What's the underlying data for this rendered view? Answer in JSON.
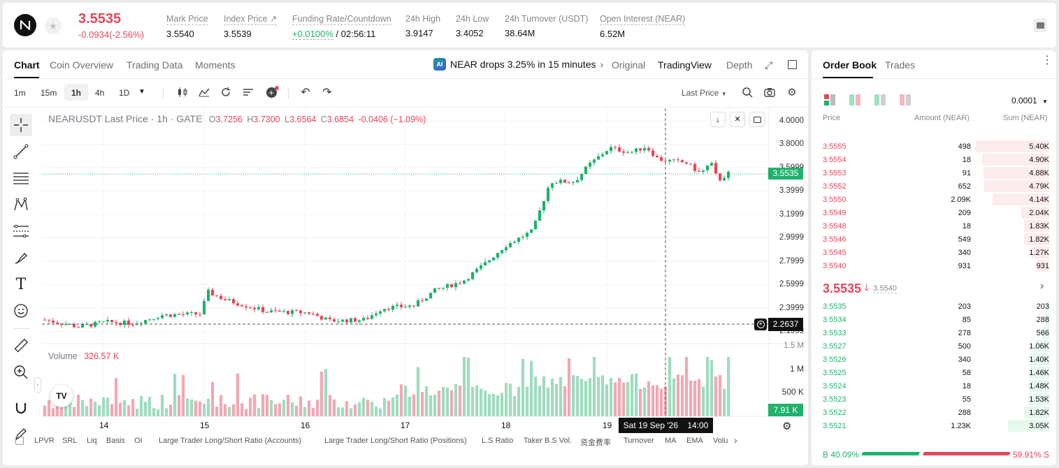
{
  "header": {
    "last_price": "3.5535",
    "change": "-0.0934(-2.56%)",
    "stats": [
      {
        "label": "Mark Price",
        "value": "3.5540"
      },
      {
        "label": "Index Price ↗",
        "value": "3.5539"
      },
      {
        "label": "Funding Rate/Countdown",
        "value_rate": "+0.0100%",
        "value_countdown": "/ 02:56:11"
      },
      {
        "label": "24h High",
        "value": "3.9147"
      },
      {
        "label": "24h Low",
        "value": "3.4052"
      },
      {
        "label": "24h Turnover (USDT)",
        "value": "38.64M"
      },
      {
        "label": "Open Interest (NEAR)",
        "value": "6.52M"
      }
    ],
    "colors": {
      "up": "#20b26c",
      "down": "#e5475b"
    }
  },
  "chart_tabs": [
    "Chart",
    "Coin Overview",
    "Trading Data",
    "Moments"
  ],
  "news": {
    "badge": "AI",
    "text": "NEAR drops 3.25% in 15 minutes"
  },
  "view_modes": [
    "Original",
    "TradingView",
    "Depth"
  ],
  "toolbar": {
    "intervals": [
      "1m",
      "15m",
      "1h",
      "4h",
      "1D"
    ],
    "price_type": "Last Price"
  },
  "legend": {
    "symbol": "NEARUSDT Last Price · 1h · GATE",
    "o": "3.7256",
    "h": "3.7300",
    "l": "3.6564",
    "c": "3.6854",
    "chg": "-0.0406 (−1.09%)"
  },
  "volume": {
    "label": "Volume",
    "value": "326.57 K",
    "current_tag": "7.91 K",
    "axis": [
      "1.5 M",
      "1 M",
      "500 K"
    ]
  },
  "price_axis": [
    "4.0000",
    "3.8000",
    "3.5999",
    "3.3999",
    "3.1999",
    "2.9999",
    "2.7999",
    "2.5999",
    "2.3999",
    "2.1999"
  ],
  "price_tags": {
    "current": "3.5535",
    "crosshair": "2.2637"
  },
  "time_axis": [
    "14",
    "15",
    "16",
    "17",
    "18",
    "19"
  ],
  "crosshair_time": "Sat 19 Sep '26    14:00",
  "indicators": [
    "LPVR",
    "SRL",
    "Liq",
    "Basis",
    "OI",
    "Large Trader Long/Short Ratio (Accounts)",
    "Large Trader Long/Short Ratio (Positions)",
    "L.S Ratio",
    "Taker B.S Vol.",
    "资金费率",
    "Turnover",
    "MA",
    "EMA",
    "Volu"
  ],
  "orderbook": {
    "tabs": [
      "Order Book",
      "Trades"
    ],
    "precision": "0.0001",
    "columns": [
      "Price",
      "Amount (NEAR)",
      "Sum (NEAR)"
    ],
    "asks": [
      {
        "price": "3.5555",
        "amount": "498",
        "sum": "5.40K",
        "depth": 1.0
      },
      {
        "price": "3.5554",
        "amount": "18",
        "sum": "4.90K",
        "depth": 0.91
      },
      {
        "price": "3.5553",
        "amount": "91",
        "sum": "4.88K",
        "depth": 0.9
      },
      {
        "price": "3.5552",
        "amount": "652",
        "sum": "4.79K",
        "depth": 0.89
      },
      {
        "price": "3.5550",
        "amount": "2.09K",
        "sum": "4.14K",
        "depth": 0.77
      },
      {
        "price": "3.5549",
        "amount": "209",
        "sum": "2.04K",
        "depth": 0.38
      },
      {
        "price": "3.5548",
        "amount": "18",
        "sum": "1.83K",
        "depth": 0.34
      },
      {
        "price": "3.5546",
        "amount": "549",
        "sum": "1.82K",
        "depth": 0.34
      },
      {
        "price": "3.5545",
        "amount": "340",
        "sum": "1.27K",
        "depth": 0.24
      },
      {
        "price": "3.5540",
        "amount": "931",
        "sum": "931",
        "depth": 0.17
      }
    ],
    "mid": {
      "price": "3.5535",
      "mark": "3.5540"
    },
    "bids": [
      {
        "price": "3.5535",
        "amount": "203",
        "sum": "203",
        "depth": 0.04
      },
      {
        "price": "3.5534",
        "amount": "85",
        "sum": "288",
        "depth": 0.05
      },
      {
        "price": "3.5533",
        "amount": "278",
        "sum": "566",
        "depth": 0.1
      },
      {
        "price": "3.5527",
        "amount": "500",
        "sum": "1.06K",
        "depth": 0.2
      },
      {
        "price": "3.5526",
        "amount": "340",
        "sum": "1.40K",
        "depth": 0.26
      },
      {
        "price": "3.5525",
        "amount": "58",
        "sum": "1.46K",
        "depth": 0.27
      },
      {
        "price": "3.5524",
        "amount": "18",
        "sum": "1.48K",
        "depth": 0.27
      },
      {
        "price": "3.5523",
        "amount": "55",
        "sum": "1.53K",
        "depth": 0.28
      },
      {
        "price": "3.5522",
        "amount": "288",
        "sum": "1.82K",
        "depth": 0.34
      },
      {
        "price": "3.5521",
        "amount": "1.23K",
        "sum": "3.05K",
        "depth": 0.56
      }
    ],
    "ratio": {
      "buy": "B 40.09%",
      "sell": "59.91% S",
      "buy_fraction": 0.4009
    }
  }
}
